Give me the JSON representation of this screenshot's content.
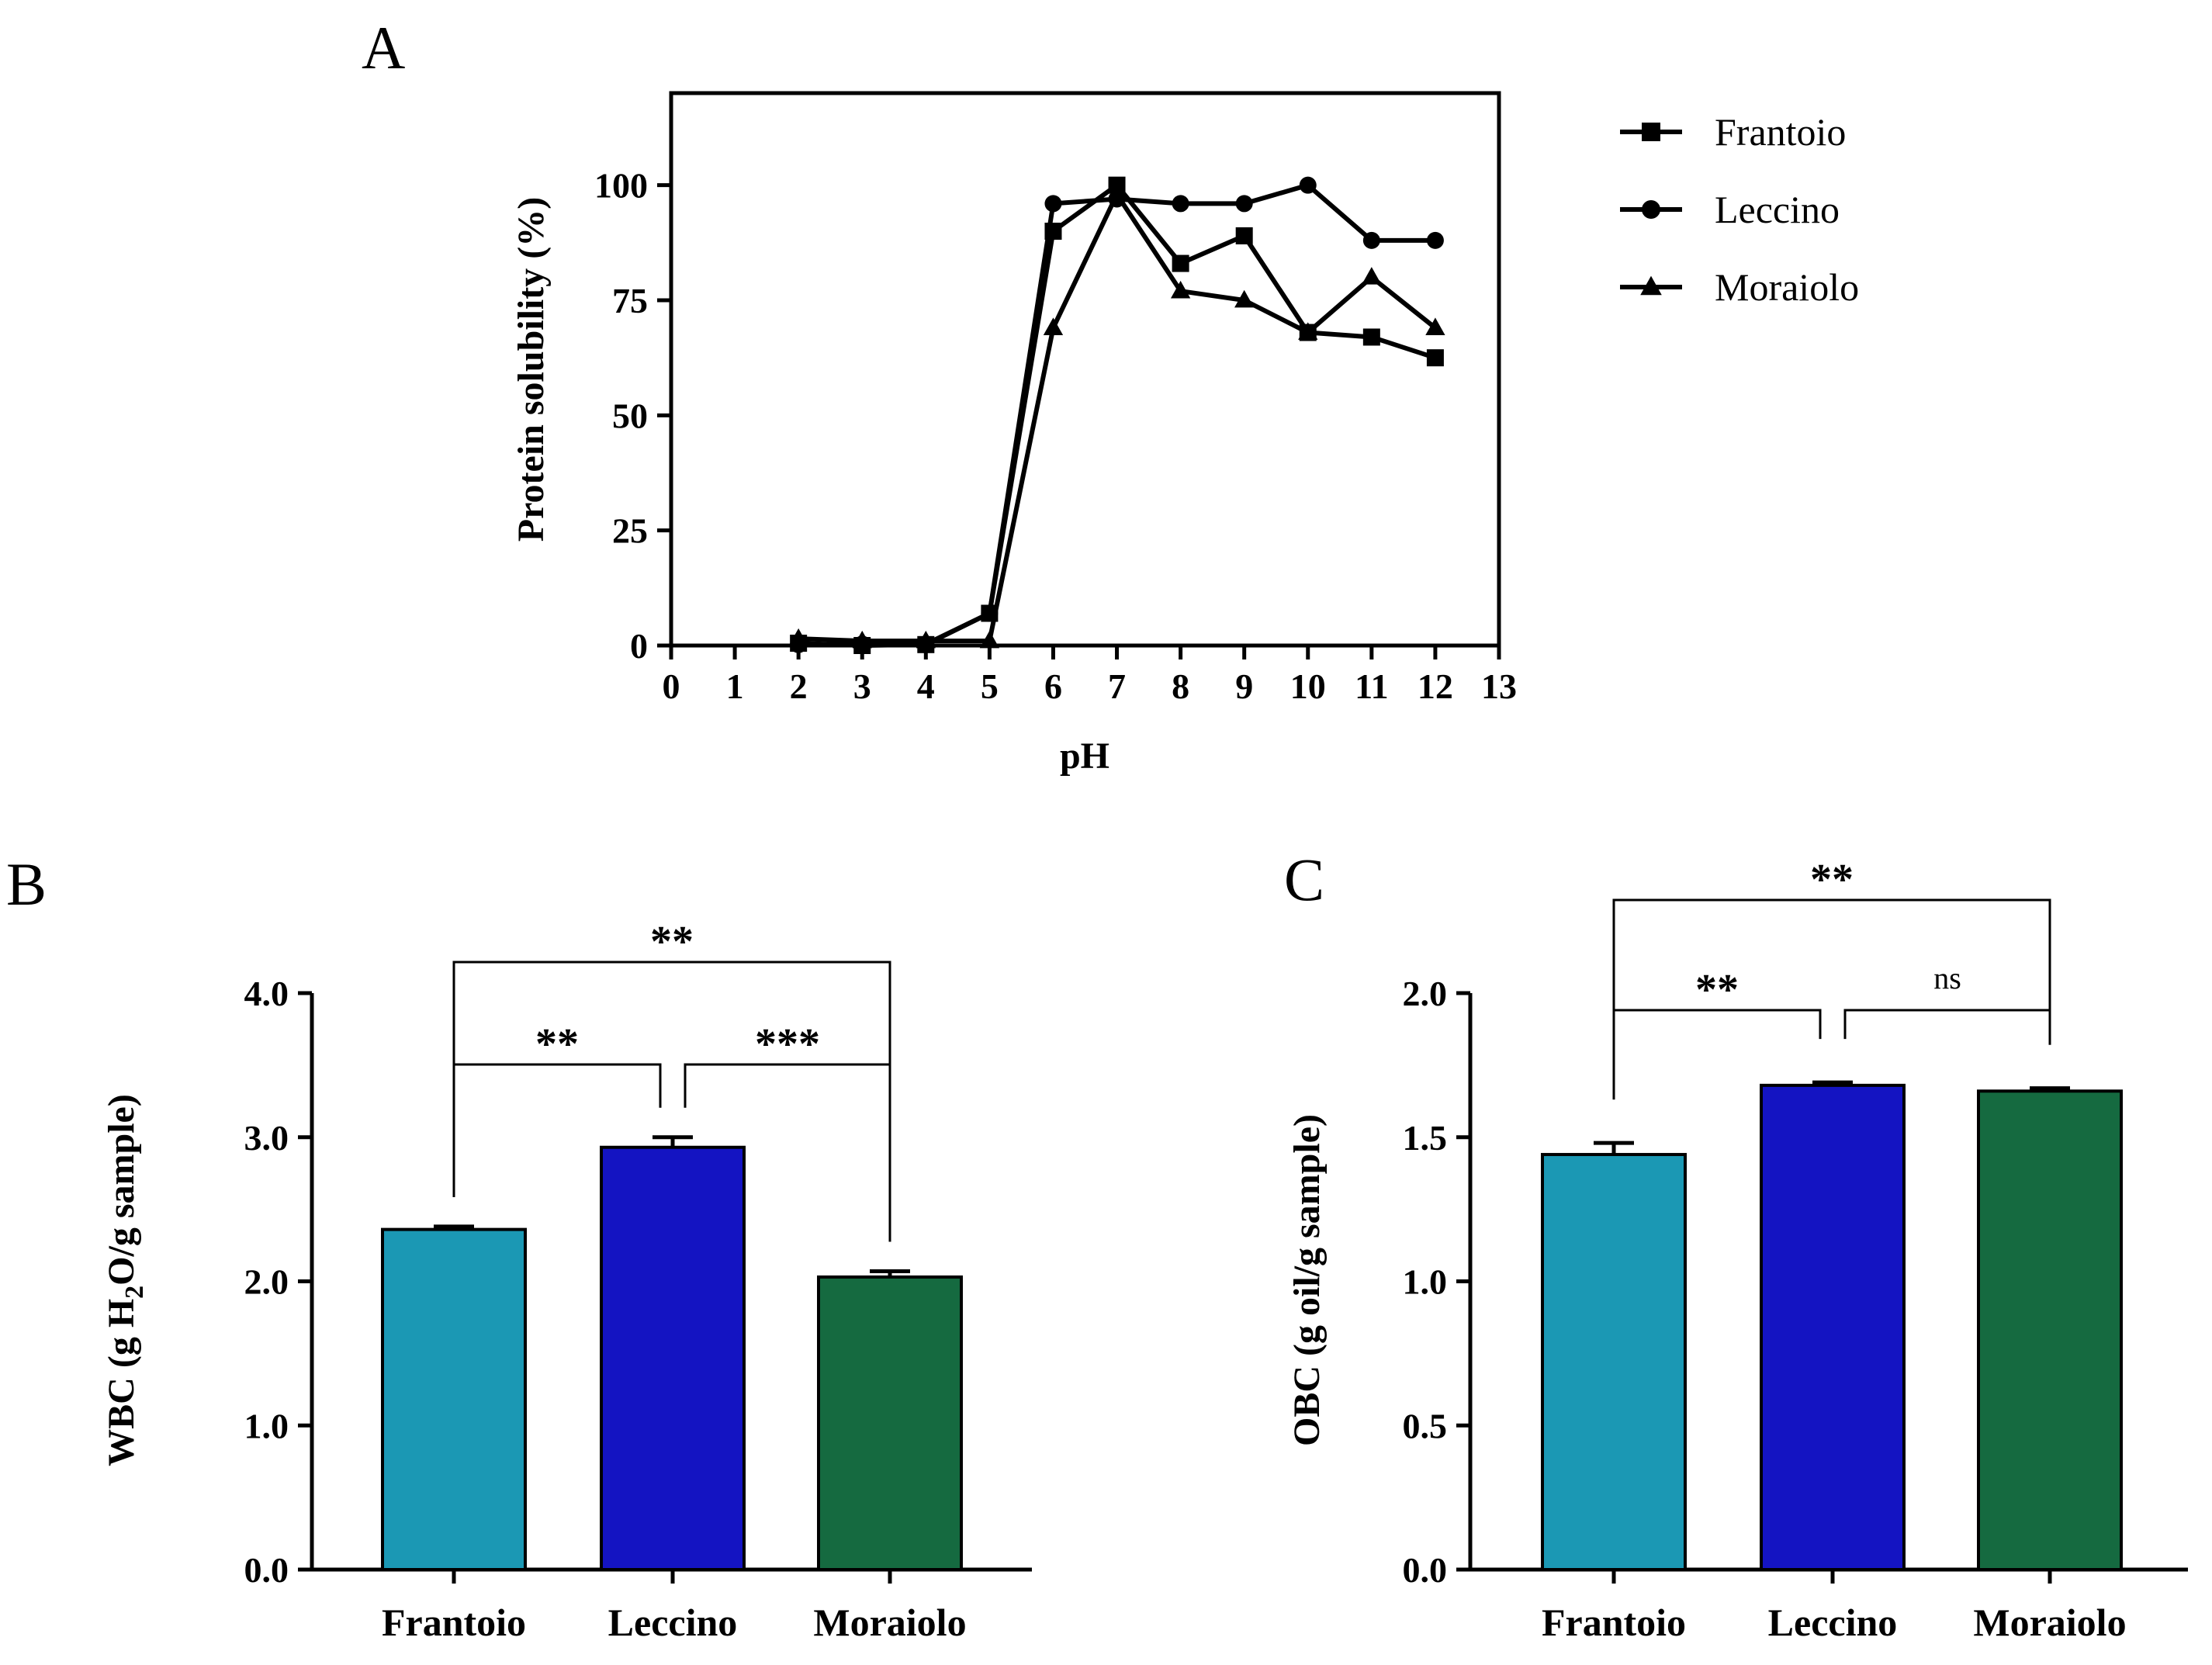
{
  "chart_data": [
    {
      "panel": "A",
      "type": "line",
      "xlabel": "pH",
      "ylabel": "Protein solubility (%)",
      "xlim": [
        0,
        13
      ],
      "ylim": [
        0,
        120
      ],
      "xticks": [
        "0",
        "1",
        "2",
        "3",
        "4",
        "5",
        "6",
        "7",
        "8",
        "9",
        "10",
        "11",
        "12",
        "13"
      ],
      "yticks": [
        "0",
        "25",
        "50",
        "75",
        "100"
      ],
      "legend_position": "right",
      "series": [
        {
          "name": "Frantoio",
          "marker": "square",
          "x": [
            2,
            3,
            4,
            5,
            6,
            7,
            8,
            9,
            10,
            11,
            12
          ],
          "y": [
            0.5,
            0,
            0.2,
            7,
            90,
            100,
            83,
            89,
            68,
            67,
            62.5
          ]
        },
        {
          "name": "Leccino",
          "marker": "circle",
          "x": [
            2,
            3,
            4,
            5,
            6,
            7,
            8,
            9,
            10,
            11,
            12
          ],
          "y": [
            0.2,
            0.3,
            0.3,
            7,
            96,
            97,
            96,
            96,
            100,
            88,
            88
          ]
        },
        {
          "name": "Moraiolo",
          "marker": "triangle",
          "x": [
            2,
            3,
            4,
            5,
            6,
            7,
            8,
            9,
            10,
            11,
            12
          ],
          "y": [
            1.5,
            1,
            1,
            1,
            69,
            98,
            77,
            75,
            68,
            80,
            69
          ]
        }
      ]
    },
    {
      "panel": "B",
      "type": "bar",
      "ylabel_parts": [
        "WBC (g H",
        "2",
        "O/g sample)"
      ],
      "ylim": [
        0,
        4
      ],
      "yticks": [
        "0.0",
        "1.0",
        "2.0",
        "3.0",
        "4.0"
      ],
      "categories": [
        "Frantoio",
        "Leccino",
        "Moraiolo"
      ],
      "values": [
        2.36,
        2.93,
        2.03
      ],
      "errors": [
        0.02,
        0.07,
        0.04
      ],
      "colors": [
        "#1b98b4",
        "#1414c2",
        "#156a40"
      ],
      "significance": [
        {
          "from": 0,
          "to": 1,
          "label": "**",
          "level": 0
        },
        {
          "from": 1,
          "to": 2,
          "label": "***",
          "level": 0
        },
        {
          "from": 0,
          "to": 2,
          "label": "**",
          "level": 1
        }
      ]
    },
    {
      "panel": "C",
      "type": "bar",
      "ylabel": "OBC (g oil/g sample)",
      "ylim": [
        0,
        2
      ],
      "yticks": [
        "0.0",
        "0.5",
        "1.0",
        "1.5",
        "2.0"
      ],
      "categories": [
        "Frantoio",
        "Leccino",
        "Moraiolo"
      ],
      "values": [
        1.44,
        1.68,
        1.66
      ],
      "errors": [
        0.04,
        0.01,
        0.01
      ],
      "colors": [
        "#1b98b4",
        "#1414c2",
        "#156a40"
      ],
      "significance": [
        {
          "from": 0,
          "to": 1,
          "label": "**",
          "level": 0
        },
        {
          "from": 1,
          "to": 2,
          "label": "ns",
          "level": 0
        },
        {
          "from": 0,
          "to": 2,
          "label": "**",
          "level": 1
        }
      ]
    }
  ]
}
